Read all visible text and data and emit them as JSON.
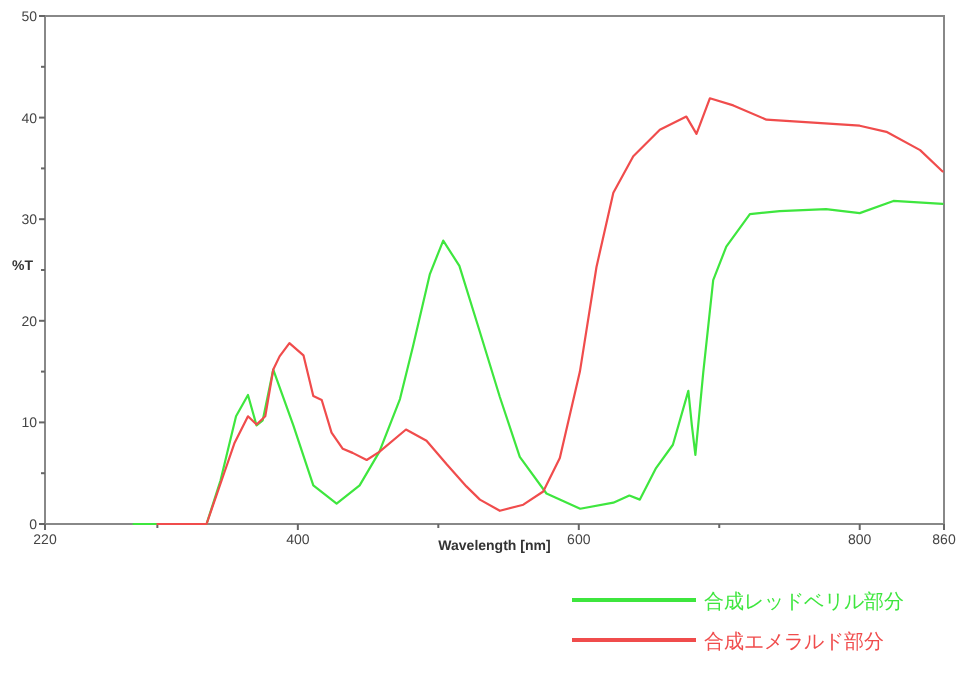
{
  "chart_data": {
    "type": "line",
    "xlabel": "Wavelength [nm]",
    "ylabel": "%T",
    "xlim": [
      220,
      860
    ],
    "ylim": [
      0,
      50
    ],
    "xticks": [
      220,
      {
        "value": 300,
        "label": null
      },
      400,
      {
        "value": 500,
        "label": null
      },
      600,
      {
        "value": 700,
        "label": null
      },
      800,
      860
    ],
    "yticks": [
      0,
      {
        "value": 5,
        "label": null
      },
      10,
      {
        "value": 15,
        "label": null
      },
      20,
      {
        "value": 25,
        "label": null
      },
      30,
      {
        "value": 35,
        "label": null
      },
      40,
      {
        "value": 45,
        "label": null
      },
      50
    ],
    "grid": false,
    "legend": "bottom right",
    "line_style": "solid",
    "marker": "none",
    "series": [
      {
        "name": "合成レッドベリル部分",
        "color": "#3ee63e",
        "x": [
          283,
          335,
          345,
          356,
          364.5,
          370.6,
          375,
          382.5,
          396.8,
          411,
          427.6,
          444,
          458,
          472.7,
          482,
          494,
          503.5,
          515,
          529.6,
          543.8,
          558,
          577,
          601,
          624.6,
          636,
          643.5,
          655,
          667,
          678,
          680.5,
          683,
          688.6,
          695.7,
          705,
          721.8,
          743,
          776,
          800,
          824,
          859
        ],
        "values": [
          0,
          0,
          4.3,
          10.6,
          12.7,
          9.7,
          10.2,
          15.2,
          9.7,
          3.8,
          2.0,
          3.8,
          7.1,
          12.3,
          17.5,
          24.6,
          27.9,
          25.4,
          18.9,
          12.5,
          6.6,
          3.0,
          1.5,
          2.1,
          2.8,
          2.4,
          5.5,
          7.8,
          13.1,
          9.7,
          6.8,
          14.9,
          24.0,
          27.3,
          30.5,
          30.8,
          31.0,
          30.6,
          31.8,
          31.5
        ]
      },
      {
        "name": "合成エメラルド部分",
        "color": "#f04c4c",
        "x": [
          300,
          335,
          347,
          355,
          364.5,
          370.6,
          376.8,
          382.5,
          387,
          394,
          404,
          411,
          417,
          424,
          432,
          439,
          449,
          458,
          477,
          491.6,
          505.8,
          520,
          529.6,
          543.8,
          560.5,
          574.7,
          586.5,
          600.8,
          612.6,
          624.6,
          638.8,
          657.7,
          676.6,
          683.8,
          693.3,
          710,
          733.6,
          767,
          800,
          819,
          843,
          859
        ],
        "values": [
          0,
          0,
          4.8,
          8.0,
          10.6,
          9.8,
          10.6,
          15.2,
          16.5,
          17.8,
          16.6,
          12.6,
          12.2,
          9.0,
          7.4,
          7.0,
          6.3,
          7.1,
          9.3,
          8.2,
          5.9,
          3.7,
          2.4,
          1.3,
          1.9,
          3.2,
          6.5,
          15.0,
          25.3,
          32.6,
          36.2,
          38.8,
          40.1,
          38.4,
          41.9,
          41.2,
          39.8,
          39.5,
          39.2,
          38.6,
          36.8,
          34.7
        ]
      }
    ]
  }
}
